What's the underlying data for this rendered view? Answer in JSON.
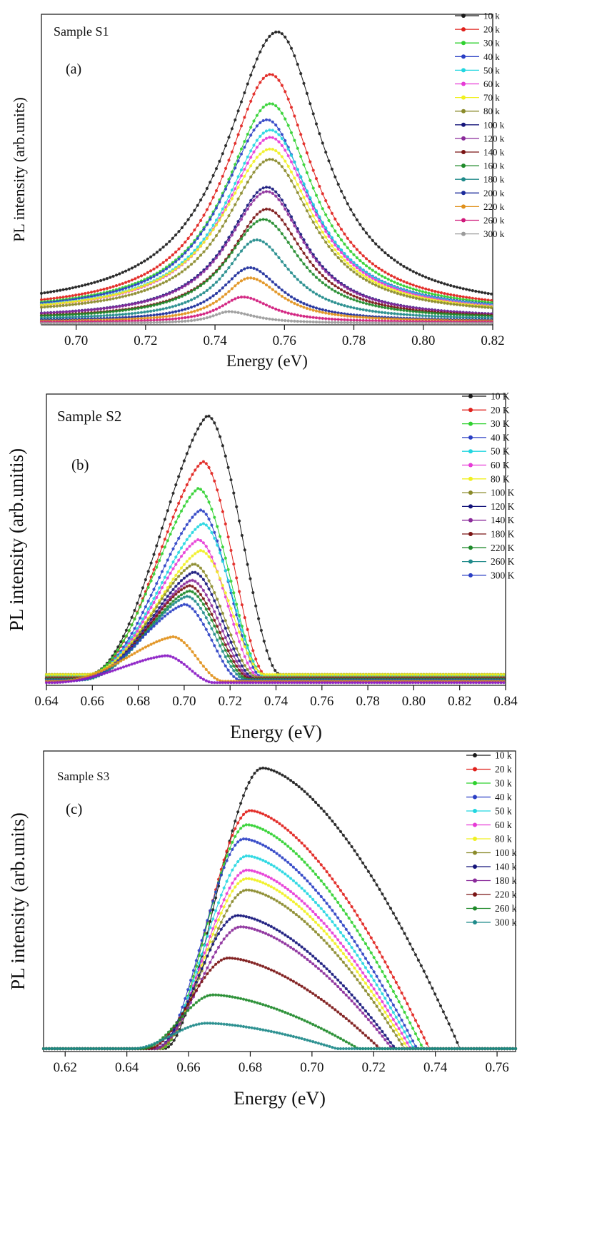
{
  "chart_data": [
    {
      "type": "scatter",
      "panel": "(a)",
      "sample_label": "Sample S1",
      "xlabel": "Energy (eV)",
      "ylabel": "PL intensity (arb.units)",
      "xlim": [
        0.69,
        0.82
      ],
      "ylim": [
        0,
        1.0
      ],
      "xticks": [
        "0.70",
        "0.72",
        "0.74",
        "0.76",
        "0.78",
        "0.80",
        "0.82"
      ],
      "legend_position": "top-right",
      "series": [
        {
          "name": "10 k",
          "color": "#1a1a1a",
          "center": 0.758,
          "peak": 1.0,
          "wl": 0.018,
          "wr": 0.016,
          "base": 0.045
        },
        {
          "name": "20 k",
          "color": "#e0201b",
          "center": 0.756,
          "peak": 0.855,
          "wl": 0.016,
          "wr": 0.015,
          "base": 0.04
        },
        {
          "name": "30 k",
          "color": "#2fd12f",
          "center": 0.756,
          "peak": 0.755,
          "wl": 0.016,
          "wr": 0.015,
          "base": 0.038
        },
        {
          "name": "40 k",
          "color": "#2a3fc4",
          "center": 0.755,
          "peak": 0.7,
          "wl": 0.016,
          "wr": 0.015,
          "base": 0.036
        },
        {
          "name": "50 k",
          "color": "#22d6e0",
          "center": 0.756,
          "peak": 0.665,
          "wl": 0.016,
          "wr": 0.015,
          "base": 0.034
        },
        {
          "name": "60 k",
          "color": "#e63ad6",
          "center": 0.756,
          "peak": 0.64,
          "wl": 0.016,
          "wr": 0.015,
          "base": 0.033
        },
        {
          "name": "70 k",
          "color": "#f0f020",
          "center": 0.756,
          "peak": 0.6,
          "wl": 0.017,
          "wr": 0.015,
          "base": 0.032
        },
        {
          "name": "80 k",
          "color": "#8a8a2a",
          "center": 0.756,
          "peak": 0.565,
          "wl": 0.016,
          "wr": 0.015,
          "base": 0.03
        },
        {
          "name": "100 k",
          "color": "#14147a",
          "center": 0.755,
          "peak": 0.47,
          "wl": 0.014,
          "wr": 0.013,
          "base": 0.02
        },
        {
          "name": "120 k",
          "color": "#8a2a9a",
          "center": 0.755,
          "peak": 0.455,
          "wl": 0.014,
          "wr": 0.013,
          "base": 0.02
        },
        {
          "name": "140 k",
          "color": "#7a1414",
          "center": 0.755,
          "peak": 0.395,
          "wl": 0.013,
          "wr": 0.013,
          "base": 0.018
        },
        {
          "name": "160 k",
          "color": "#1f8a2a",
          "center": 0.754,
          "peak": 0.36,
          "wl": 0.013,
          "wr": 0.013,
          "base": 0.017
        },
        {
          "name": "180 k",
          "color": "#1f8a8a",
          "center": 0.752,
          "peak": 0.29,
          "wl": 0.011,
          "wr": 0.012,
          "base": 0.015
        },
        {
          "name": "200 k",
          "color": "#1a2a9a",
          "center": 0.75,
          "peak": 0.195,
          "wl": 0.01,
          "wr": 0.011,
          "base": 0.012
        },
        {
          "name": "220 k",
          "color": "#e0901a",
          "center": 0.75,
          "peak": 0.16,
          "wl": 0.009,
          "wr": 0.011,
          "base": 0.01
        },
        {
          "name": "260 k",
          "color": "#d0187a",
          "center": 0.748,
          "peak": 0.095,
          "wl": 0.008,
          "wr": 0.01,
          "base": 0.008
        },
        {
          "name": "300 k",
          "color": "#9a9a9a",
          "center": 0.744,
          "peak": 0.045,
          "wl": 0.006,
          "wr": 0.009,
          "base": 0.005
        }
      ]
    },
    {
      "type": "scatter",
      "panel": "(b)",
      "sample_label": "Sample S2",
      "xlabel": "Energy (eV)",
      "ylabel": "PL intensity (arb.unitis)",
      "xlim": [
        0.64,
        0.84
      ],
      "ylim": [
        0,
        1.0
      ],
      "xticks": [
        "0.64",
        "0.66",
        "0.68",
        "0.70",
        "0.72",
        "0.74",
        "0.76",
        "0.78",
        "0.80",
        "0.82",
        "0.84"
      ],
      "legend_position": "top-right",
      "series": [
        {
          "name": "10 K",
          "color": "#1a1a1a",
          "peak": 1.0,
          "peak_x": 0.71,
          "rise": 0.658,
          "fall": 0.742,
          "base": 0.04
        },
        {
          "name": "20 K",
          "color": "#e0201b",
          "peak": 0.83,
          "peak_x": 0.708,
          "rise": 0.658,
          "fall": 0.736,
          "base": 0.035
        },
        {
          "name": "30 K",
          "color": "#2fd12f",
          "peak": 0.73,
          "peak_x": 0.706,
          "rise": 0.657,
          "fall": 0.735,
          "base": 0.035
        },
        {
          "name": "40 K",
          "color": "#2a3fc4",
          "peak": 0.65,
          "peak_x": 0.707,
          "rise": 0.657,
          "fall": 0.734,
          "base": 0.03
        },
        {
          "name": "50 K",
          "color": "#22d6e0",
          "peak": 0.6,
          "peak_x": 0.708,
          "rise": 0.657,
          "fall": 0.735,
          "base": 0.035
        },
        {
          "name": "60 K",
          "color": "#e63ad6",
          "peak": 0.54,
          "peak_x": 0.706,
          "rise": 0.657,
          "fall": 0.733,
          "base": 0.03
        },
        {
          "name": "80 K",
          "color": "#f0f020",
          "peak": 0.5,
          "peak_x": 0.707,
          "rise": 0.657,
          "fall": 0.735,
          "base": 0.04
        },
        {
          "name": "100 K",
          "color": "#8a8a2a",
          "peak": 0.45,
          "peak_x": 0.704,
          "rise": 0.657,
          "fall": 0.732,
          "base": 0.03
        },
        {
          "name": "120 K",
          "color": "#14147a",
          "peak": 0.42,
          "peak_x": 0.704,
          "rise": 0.656,
          "fall": 0.731,
          "base": 0.025
        },
        {
          "name": "140 K",
          "color": "#8a2a9a",
          "peak": 0.39,
          "peak_x": 0.703,
          "rise": 0.656,
          "fall": 0.73,
          "base": 0.025
        },
        {
          "name": "180 K",
          "color": "#7a1414",
          "peak": 0.37,
          "peak_x": 0.702,
          "rise": 0.656,
          "fall": 0.729,
          "base": 0.025
        },
        {
          "name": "220 K",
          "color": "#1f8a2a",
          "peak": 0.35,
          "peak_x": 0.702,
          "rise": 0.655,
          "fall": 0.728,
          "base": 0.022
        },
        {
          "name": "260 K",
          "color": "#1f8a8a",
          "peak": 0.33,
          "peak_x": 0.701,
          "rise": 0.655,
          "fall": 0.727,
          "base": 0.02
        },
        {
          "name": "300 K",
          "color": "#2a3fc4",
          "peak": 0.3,
          "peak_x": 0.7,
          "rise": 0.652,
          "fall": 0.725,
          "base": 0.018
        },
        {
          "name": "",
          "color": "#e0901a",
          "peak": 0.18,
          "peak_x": 0.695,
          "rise": 0.645,
          "fall": 0.717,
          "base": 0.015
        },
        {
          "name": "",
          "color": "#8a1ac4",
          "peak": 0.11,
          "peak_x": 0.692,
          "rise": 0.642,
          "fall": 0.713,
          "base": 0.01
        }
      ]
    },
    {
      "type": "scatter",
      "panel": "(c)",
      "sample_label": "Sample S3",
      "xlabel": "Energy (eV)",
      "ylabel": "PL intensity (arb.units)",
      "xlim": [
        0.613,
        0.766
      ],
      "ylim": [
        0,
        1.0
      ],
      "xticks": [
        "0.62",
        "0.64",
        "0.66",
        "0.68",
        "0.70",
        "0.72",
        "0.74",
        "0.76"
      ],
      "legend_position": "top-right",
      "series": [
        {
          "name": "10 k",
          "color": "#1a1a1a",
          "peak": 1.0,
          "peak_x": 0.684,
          "rise": 0.652,
          "fall": 0.748
        },
        {
          "name": "20 k",
          "color": "#e0201b",
          "peak": 0.85,
          "peak_x": 0.68,
          "rise": 0.651,
          "fall": 0.738
        },
        {
          "name": "30 k",
          "color": "#2fd12f",
          "peak": 0.8,
          "peak_x": 0.679,
          "rise": 0.651,
          "fall": 0.736
        },
        {
          "name": "40 k",
          "color": "#2a3fc4",
          "peak": 0.75,
          "peak_x": 0.678,
          "rise": 0.65,
          "fall": 0.734
        },
        {
          "name": "50 k",
          "color": "#22d6e0",
          "peak": 0.69,
          "peak_x": 0.679,
          "rise": 0.65,
          "fall": 0.733
        },
        {
          "name": "60 k",
          "color": "#e63ad6",
          "peak": 0.64,
          "peak_x": 0.679,
          "rise": 0.65,
          "fall": 0.732
        },
        {
          "name": "80 k",
          "color": "#f0f020",
          "peak": 0.61,
          "peak_x": 0.679,
          "rise": 0.65,
          "fall": 0.731
        },
        {
          "name": "100 k",
          "color": "#8a8a2a",
          "peak": 0.57,
          "peak_x": 0.679,
          "rise": 0.65,
          "fall": 0.73
        },
        {
          "name": "140 k",
          "color": "#14147a",
          "peak": 0.48,
          "peak_x": 0.676,
          "rise": 0.649,
          "fall": 0.727
        },
        {
          "name": "180 k",
          "color": "#8a2a9a",
          "peak": 0.44,
          "peak_x": 0.677,
          "rise": 0.649,
          "fall": 0.726
        },
        {
          "name": "220 k",
          "color": "#7a1414",
          "peak": 0.33,
          "peak_x": 0.673,
          "rise": 0.647,
          "fall": 0.722
        },
        {
          "name": "260 k",
          "color": "#1f8a2a",
          "peak": 0.2,
          "peak_x": 0.668,
          "rise": 0.645,
          "fall": 0.715
        },
        {
          "name": "300 k",
          "color": "#1f8a8a",
          "peak": 0.1,
          "peak_x": 0.666,
          "rise": 0.642,
          "fall": 0.708
        }
      ]
    }
  ]
}
